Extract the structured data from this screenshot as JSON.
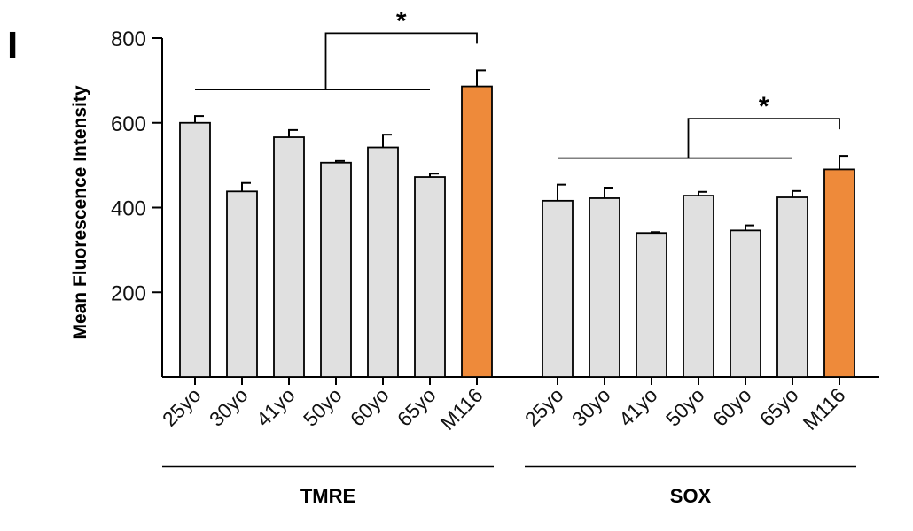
{
  "panel_label": "I",
  "colors": {
    "control_bar": "#e0e0e0",
    "highlight_bar": "#ee8a3a",
    "stroke": "#000000"
  },
  "chart_data": {
    "type": "bar",
    "ylabel": "Mean Fluorescence Intensity",
    "ylim": [
      0,
      800
    ],
    "yticks": [
      200,
      400,
      600,
      800
    ],
    "groups": [
      {
        "name": "TMRE",
        "categories": [
          "25yo",
          "30yo",
          "41yo",
          "50yo",
          "60yo",
          "65yo",
          "M116"
        ],
        "values": [
          600,
          438,
          566,
          506,
          542,
          472,
          686
        ],
        "errors": [
          16,
          20,
          17,
          4,
          30,
          8,
          38
        ],
        "highlight": [
          false,
          false,
          false,
          false,
          false,
          false,
          true
        ],
        "significance": "*"
      },
      {
        "name": "SOX",
        "categories": [
          "25yo",
          "30yo",
          "41yo",
          "50yo",
          "60yo",
          "65yo",
          "M116"
        ],
        "values": [
          416,
          422,
          340,
          428,
          346,
          424,
          490
        ],
        "errors": [
          38,
          25,
          2,
          9,
          12,
          15,
          32
        ],
        "highlight": [
          false,
          false,
          false,
          false,
          false,
          false,
          true
        ],
        "significance": "*"
      }
    ]
  }
}
